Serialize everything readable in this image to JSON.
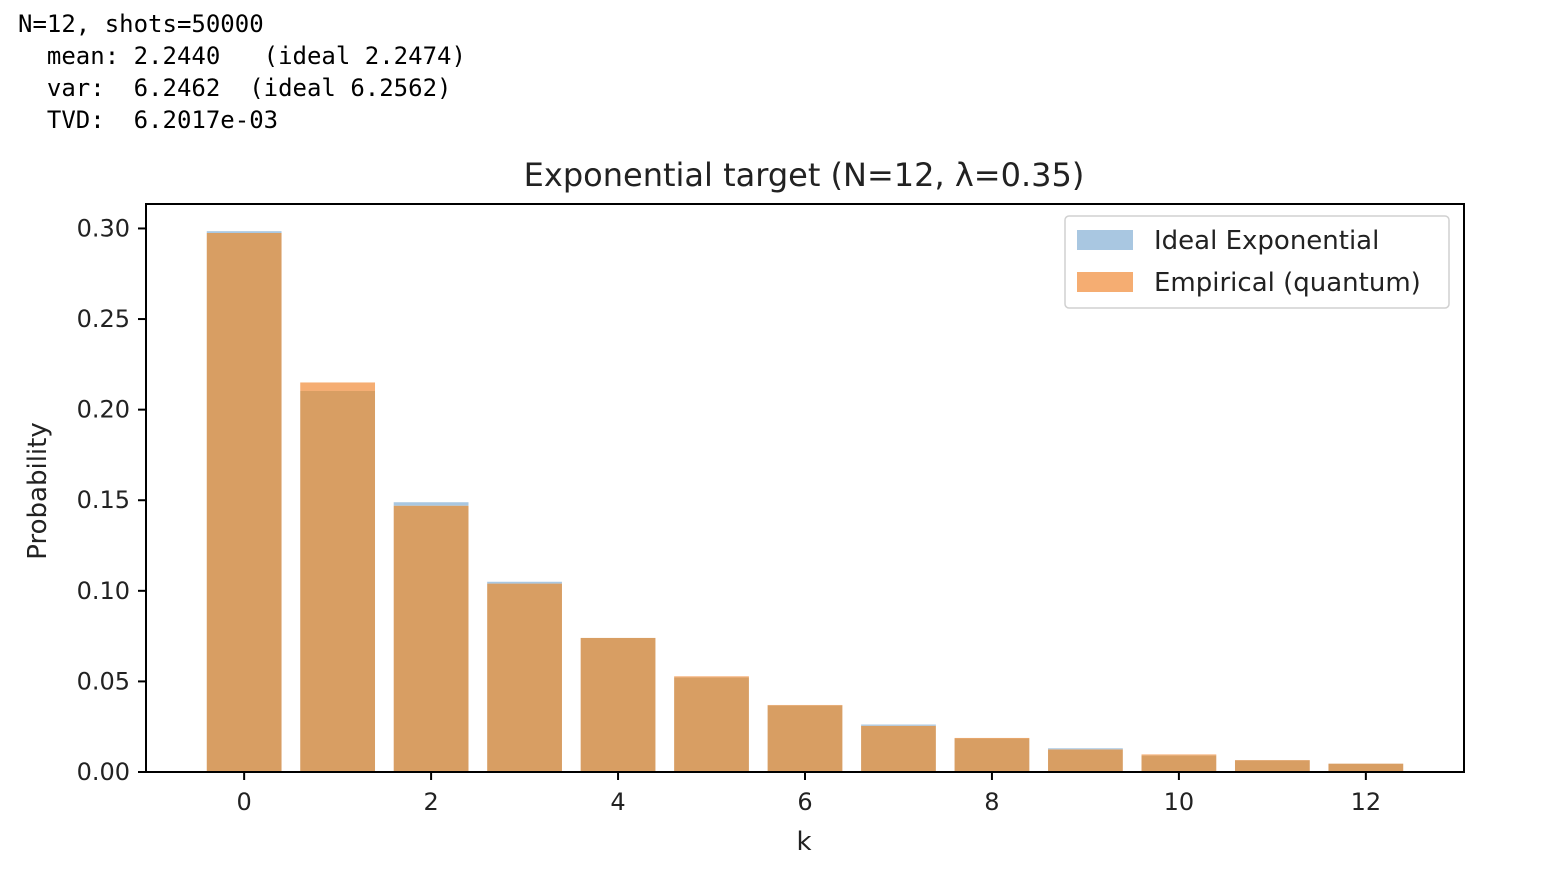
{
  "output_lines": [
    "N=12, shots=50000",
    "  mean: 2.2440   (ideal 2.2474)",
    "  var:  6.2462  (ideal 6.2562)",
    "  TVD:  6.2017e-03"
  ],
  "chart_data": {
    "type": "bar",
    "title": "Exponential target (N=12, λ=0.35)",
    "xlabel": "k",
    "ylabel": "Probability",
    "x": [
      0,
      1,
      2,
      3,
      4,
      5,
      6,
      7,
      8,
      9,
      10,
      11,
      12
    ],
    "xticks": [
      0,
      2,
      4,
      6,
      8,
      10,
      12
    ],
    "xlim": [
      -1.05,
      13.05
    ],
    "yticks": [
      0.0,
      0.05,
      0.1,
      0.15,
      0.2,
      0.25,
      0.3
    ],
    "ytick_labels": [
      "0.00",
      "0.05",
      "0.10",
      "0.15",
      "0.20",
      "0.25",
      "0.30"
    ],
    "ylim": [
      0,
      0.3135
    ],
    "bar_width": 0.8,
    "legend_position": "upper-right",
    "grid": false,
    "series": [
      {
        "name": "Ideal Exponential",
        "color": "#a9c7e1",
        "values": [
          0.2985,
          0.2103,
          0.1489,
          0.105,
          0.074,
          0.0522,
          0.0368,
          0.0262,
          0.0185,
          0.0131,
          0.0092,
          0.0065,
          0.0046
        ]
      },
      {
        "name": "Empirical (quantum)",
        "color": "#f5ad72",
        "values": [
          0.2975,
          0.215,
          0.147,
          0.104,
          0.074,
          0.0528,
          0.037,
          0.0255,
          0.0188,
          0.0125,
          0.0097,
          0.0066,
          0.0046
        ]
      }
    ],
    "overlap_color": "#d89e63"
  }
}
